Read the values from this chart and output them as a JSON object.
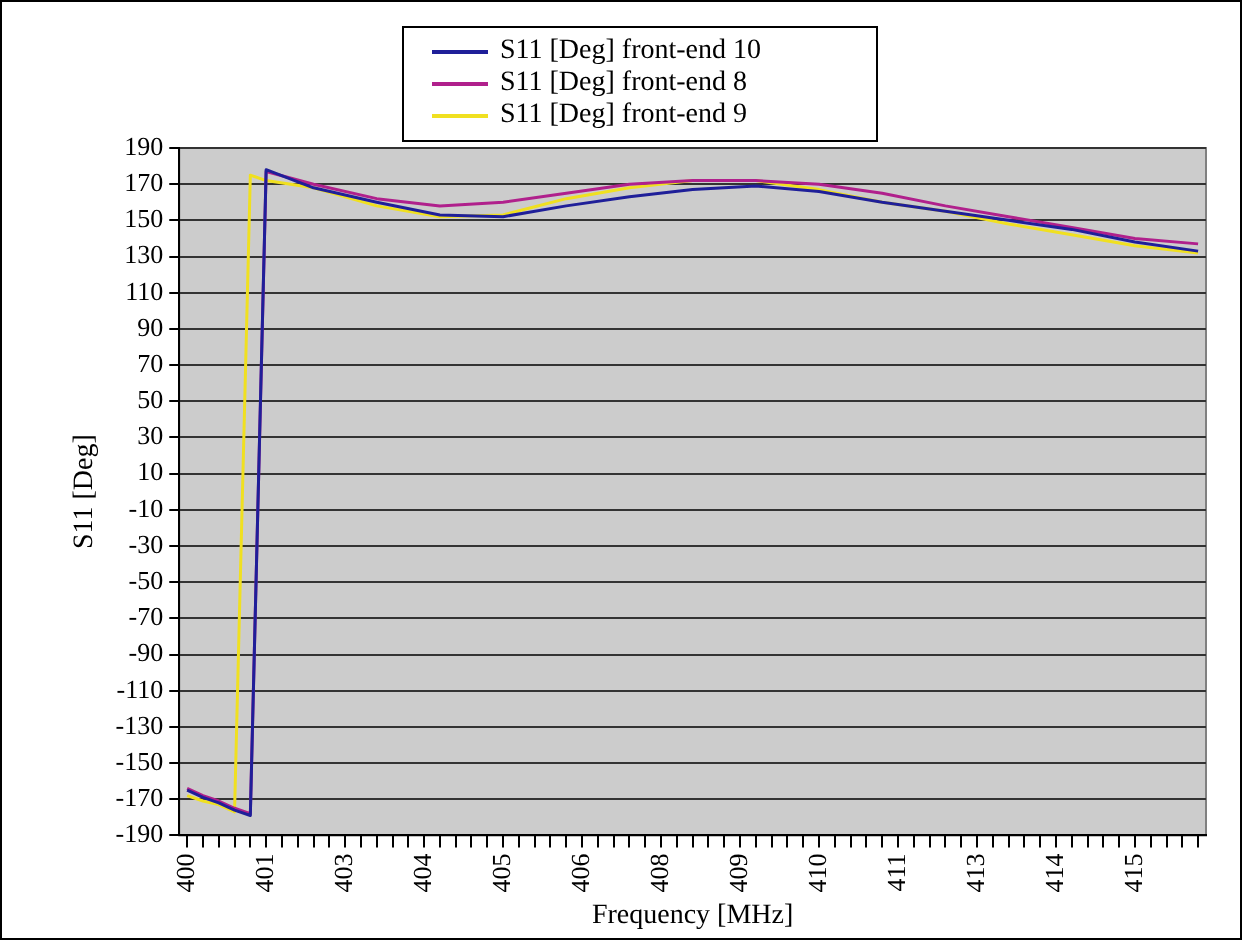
{
  "chart_data": {
    "type": "line",
    "xlabel": "Frequency [MHz]",
    "ylabel": "S11 [Deg]",
    "x": [
      400,
      400.25,
      400.5,
      400.75,
      401,
      401.25,
      402,
      403,
      404,
      405,
      406,
      407,
      408,
      409,
      410,
      411,
      412,
      413,
      414,
      415,
      416
    ],
    "series": [
      {
        "name": "S11 [Deg] front-end 10",
        "color": "#1f1f99",
        "values": [
          -165,
          -169,
          -172,
          -176,
          -179,
          178,
          168,
          160,
          153,
          152,
          158,
          163,
          167,
          169,
          166,
          160,
          155,
          150,
          145,
          138,
          133
        ]
      },
      {
        "name": "S11 [Deg] front-end 8",
        "color": "#b0208c",
        "values": [
          -164,
          -168,
          -171,
          -175,
          -178,
          177,
          170,
          162,
          158,
          160,
          165,
          170,
          172,
          172,
          170,
          165,
          158,
          152,
          146,
          140,
          137
        ]
      },
      {
        "name": "S11 [Deg] front-end 9",
        "color": "#f0e020",
        "values": [
          -168,
          -171,
          -173,
          -177,
          175,
          172,
          168,
          158,
          152,
          153,
          162,
          168,
          172,
          172,
          167,
          160,
          155,
          148,
          142,
          136,
          132
        ]
      }
    ],
    "xlim": [
      399.875,
      416.125
    ],
    "xticks": [
      {
        "value": 400,
        "label": "400"
      },
      {
        "value": 400.25,
        "label": null
      },
      {
        "value": 400.5,
        "label": null
      },
      {
        "value": 400.75,
        "label": null
      },
      {
        "value": 401,
        "label": null
      },
      {
        "value": 401.25,
        "label": "401"
      },
      {
        "value": 401.5,
        "label": null
      },
      {
        "value": 401.75,
        "label": null
      },
      {
        "value": 402,
        "label": null
      },
      {
        "value": 402.25,
        "label": null
      },
      {
        "value": 402.5,
        "label": "403"
      },
      {
        "value": 402.75,
        "label": null
      },
      {
        "value": 403,
        "label": null
      },
      {
        "value": 403.25,
        "label": null
      },
      {
        "value": 403.5,
        "label": null
      },
      {
        "value": 403.75,
        "label": "404"
      },
      {
        "value": 404,
        "label": null
      },
      {
        "value": 404.25,
        "label": null
      },
      {
        "value": 404.5,
        "label": null
      },
      {
        "value": 404.75,
        "label": null
      },
      {
        "value": 405,
        "label": "405"
      },
      {
        "value": 405.25,
        "label": null
      },
      {
        "value": 405.5,
        "label": null
      },
      {
        "value": 405.75,
        "label": null
      },
      {
        "value": 406,
        "label": null
      },
      {
        "value": 406.25,
        "label": "406"
      },
      {
        "value": 406.5,
        "label": null
      },
      {
        "value": 406.75,
        "label": null
      },
      {
        "value": 407,
        "label": null
      },
      {
        "value": 407.25,
        "label": null
      },
      {
        "value": 407.5,
        "label": "408"
      },
      {
        "value": 407.75,
        "label": null
      },
      {
        "value": 408,
        "label": null
      },
      {
        "value": 408.25,
        "label": null
      },
      {
        "value": 408.5,
        "label": null
      },
      {
        "value": 408.75,
        "label": "409"
      },
      {
        "value": 409,
        "label": null
      },
      {
        "value": 409.25,
        "label": null
      },
      {
        "value": 409.5,
        "label": null
      },
      {
        "value": 409.75,
        "label": null
      },
      {
        "value": 410,
        "label": "410"
      },
      {
        "value": 410.25,
        "label": null
      },
      {
        "value": 410.5,
        "label": null
      },
      {
        "value": 410.75,
        "label": null
      },
      {
        "value": 411,
        "label": null
      },
      {
        "value": 411.25,
        "label": "411"
      },
      {
        "value": 411.5,
        "label": null
      },
      {
        "value": 411.75,
        "label": null
      },
      {
        "value": 412,
        "label": null
      },
      {
        "value": 412.25,
        "label": null
      },
      {
        "value": 412.5,
        "label": "413"
      },
      {
        "value": 412.75,
        "label": null
      },
      {
        "value": 413,
        "label": null
      },
      {
        "value": 413.25,
        "label": null
      },
      {
        "value": 413.5,
        "label": null
      },
      {
        "value": 413.75,
        "label": "414"
      },
      {
        "value": 414,
        "label": null
      },
      {
        "value": 414.25,
        "label": null
      },
      {
        "value": 414.5,
        "label": null
      },
      {
        "value": 414.75,
        "label": null
      },
      {
        "value": 415,
        "label": "415"
      },
      {
        "value": 415.25,
        "label": null
      },
      {
        "value": 415.5,
        "label": null
      },
      {
        "value": 415.75,
        "label": null
      },
      {
        "value": 416,
        "label": null
      }
    ],
    "ylim": [
      -190,
      190
    ],
    "yticks": [
      -190,
      -170,
      -150,
      -130,
      -110,
      -90,
      -70,
      -50,
      -30,
      -10,
      10,
      30,
      50,
      70,
      90,
      110,
      130,
      150,
      170,
      190
    ],
    "grid": "y",
    "legend": "top",
    "marker": "none",
    "line_style": "solid"
  }
}
